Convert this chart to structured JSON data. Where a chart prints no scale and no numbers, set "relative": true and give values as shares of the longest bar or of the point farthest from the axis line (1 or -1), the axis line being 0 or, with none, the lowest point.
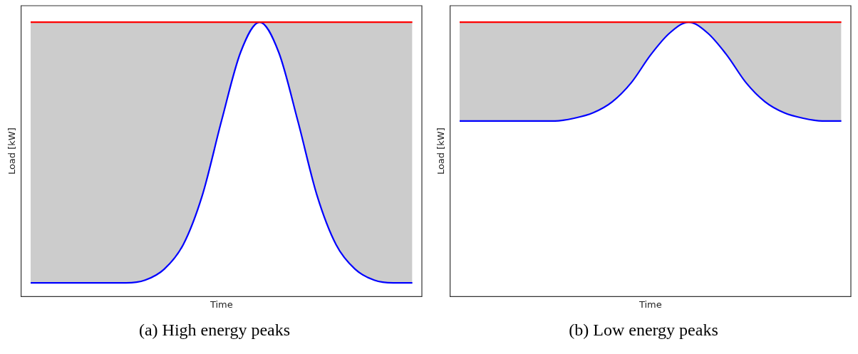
{
  "chart_data": [
    {
      "type": "line",
      "title": "(a) High energy peaks",
      "xlabel": "Time",
      "ylabel": "Load [kW]",
      "relative": true,
      "tick_labels": false,
      "grid": false,
      "legend": false,
      "marker": "none",
      "categories": [
        null,
        null,
        null,
        null,
        null,
        null,
        null,
        null,
        null,
        null,
        null,
        null,
        null,
        null,
        null,
        null,
        null,
        null,
        null,
        null,
        null
      ],
      "series": [
        {
          "color": "#ff0000",
          "values": [
            1,
            1,
            1,
            1,
            1,
            1,
            1,
            1,
            1,
            1,
            1,
            1,
            1,
            1,
            1,
            1,
            1,
            1,
            1,
            1,
            1
          ],
          "lower": [
            0.05,
            0.05,
            0.05,
            0.05,
            0.05,
            0.05,
            0.06,
            0.1,
            0.19,
            0.37,
            0.64,
            0.89,
            1,
            0.89,
            0.64,
            0.37,
            0.19,
            0.1,
            0.06,
            0.05,
            0.05
          ],
          "upper": [
            1,
            1,
            1,
            1,
            1,
            1,
            1,
            1,
            1,
            1,
            1,
            1,
            1,
            1,
            1,
            1,
            1,
            1,
            1,
            1,
            1
          ]
        },
        {
          "color": "#0000ff",
          "values": [
            0.05,
            0.05,
            0.05,
            0.05,
            0.05,
            0.05,
            0.06,
            0.1,
            0.19,
            0.37,
            0.64,
            0.89,
            1,
            0.89,
            0.64,
            0.37,
            0.19,
            0.1,
            0.06,
            0.05,
            0.05
          ]
        }
      ]
    },
    {
      "type": "line",
      "title": "(b) Low energy peaks",
      "xlabel": "Time",
      "ylabel": "Load [kW]",
      "relative": true,
      "tick_labels": false,
      "grid": false,
      "legend": false,
      "marker": "none",
      "categories": [
        null,
        null,
        null,
        null,
        null,
        null,
        null,
        null,
        null,
        null,
        null,
        null,
        null,
        null,
        null,
        null,
        null,
        null,
        null,
        null,
        null
      ],
      "series": [
        {
          "color": "#ff0000",
          "values": [
            1,
            1,
            1,
            1,
            1,
            1,
            1,
            1,
            1,
            1,
            1,
            1,
            1,
            1,
            1,
            1,
            1,
            1,
            1,
            1,
            1
          ],
          "lower": [
            0.64,
            0.64,
            0.64,
            0.64,
            0.64,
            0.64,
            0.65,
            0.67,
            0.71,
            0.78,
            0.88,
            0.96,
            1,
            0.96,
            0.88,
            0.78,
            0.71,
            0.67,
            0.65,
            0.64,
            0.64
          ],
          "upper": [
            1,
            1,
            1,
            1,
            1,
            1,
            1,
            1,
            1,
            1,
            1,
            1,
            1,
            1,
            1,
            1,
            1,
            1,
            1,
            1,
            1
          ]
        },
        {
          "color": "#0000ff",
          "values": [
            0.64,
            0.64,
            0.64,
            0.64,
            0.64,
            0.64,
            0.65,
            0.67,
            0.71,
            0.78,
            0.88,
            0.96,
            1,
            0.96,
            0.88,
            0.78,
            0.71,
            0.67,
            0.65,
            0.64,
            0.64
          ]
        }
      ]
    }
  ]
}
